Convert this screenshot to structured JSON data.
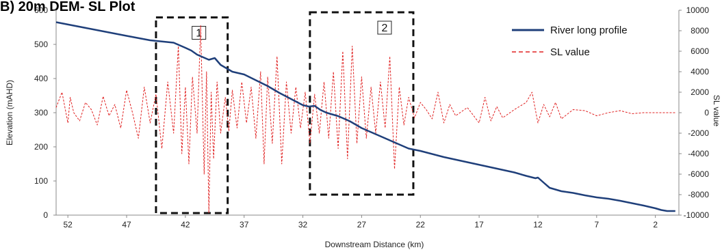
{
  "colors": {
    "profile": "#1f3f7a",
    "sl": "#e02020",
    "box": "#111111"
  },
  "chart_data": {
    "type": "line",
    "title": "B) 20m DEM- SL Plot",
    "xlabel": "Downstream Distance (km)",
    "ylabel": "Elevation (mAHD)",
    "y2label": "SL value",
    "xlim": [
      53,
      0
    ],
    "x_reversed": true,
    "ylim": [
      0,
      600
    ],
    "y2lim": [
      -10000,
      10000
    ],
    "x_ticks": [
      52,
      47,
      42,
      37,
      32,
      27,
      22,
      17,
      12,
      7,
      2
    ],
    "y_ticks": [
      0,
      100,
      200,
      300,
      400,
      500,
      600
    ],
    "y2_ticks": [
      -10000,
      -8000,
      -6000,
      -4000,
      -2000,
      0,
      2000,
      4000,
      6000,
      8000,
      10000
    ],
    "legend": {
      "position": "top-right",
      "entries": [
        "River long profile",
        "SL value"
      ]
    },
    "grid": false,
    "series": [
      {
        "name": "River long profile",
        "axis": "left",
        "style": "solid",
        "x": [
          53,
          50,
          47,
          45,
          43,
          42,
          41.5,
          41,
          40,
          39.5,
          39,
          38,
          37,
          36,
          35,
          34,
          33,
          32,
          31.5,
          31,
          30.5,
          30,
          29,
          28,
          27,
          26,
          25,
          24,
          23,
          22,
          20,
          18,
          16,
          14,
          13,
          12.2,
          12,
          11.5,
          11,
          10,
          9,
          8,
          7,
          6,
          5,
          4,
          3,
          2,
          1.5,
          1,
          0.3
        ],
        "y": [
          565,
          545,
          525,
          512,
          505,
          490,
          482,
          470,
          455,
          460,
          440,
          420,
          412,
          395,
          378,
          358,
          340,
          322,
          318,
          320,
          308,
          300,
          290,
          275,
          255,
          240,
          225,
          210,
          195,
          188,
          170,
          155,
          140,
          125,
          115,
          108,
          110,
          95,
          80,
          70,
          65,
          58,
          52,
          48,
          42,
          35,
          28,
          20,
          15,
          12,
          12
        ]
      },
      {
        "name": "SL value",
        "axis": "right",
        "style": "dashed",
        "x": [
          53,
          52.5,
          52,
          51.8,
          51.5,
          51,
          50.5,
          50,
          49.5,
          49,
          48.5,
          48,
          47.5,
          47,
          46.5,
          46,
          45.5,
          45,
          44.5,
          44,
          43.5,
          43,
          42.6,
          42.3,
          42,
          41.7,
          41.4,
          41,
          40.7,
          40.4,
          40.2,
          40,
          39.8,
          39.6,
          39.3,
          39,
          38.6,
          38.3,
          38,
          37.6,
          37.2,
          36.8,
          36.4,
          36,
          35.6,
          35.3,
          35,
          34.6,
          34.2,
          33.8,
          33.4,
          33,
          32.6,
          32.2,
          31.8,
          31.4,
          31,
          30.6,
          30.2,
          29.8,
          29.4,
          29,
          28.6,
          28.2,
          27.8,
          27.4,
          27,
          26.6,
          26.2,
          25.8,
          25.4,
          25,
          24.6,
          24.2,
          23.8,
          23.4,
          23,
          22.5,
          22,
          21.5,
          21,
          20.5,
          20,
          19.5,
          19,
          18,
          17,
          16.5,
          16,
          15.5,
          15,
          14,
          13,
          12.5,
          12,
          11.5,
          11,
          10.5,
          10,
          9,
          8,
          7,
          6,
          5,
          4,
          3,
          2,
          1,
          0.3
        ],
        "y": [
          500,
          2000,
          -1000,
          1500,
          0,
          -800,
          1000,
          300,
          -1200,
          1600,
          -300,
          800,
          -1500,
          2200,
          0,
          -2500,
          2500,
          -1000,
          1800,
          -3500,
          3000,
          -2000,
          6500,
          -4000,
          2500,
          -5000,
          3500,
          -2000,
          8500,
          -6000,
          4000,
          -9800,
          2000,
          -4500,
          3000,
          -2000,
          1500,
          -1800,
          2200,
          -1500,
          3000,
          -1000,
          2500,
          -2500,
          4000,
          -5000,
          3500,
          -3000,
          5500,
          -5000,
          3000,
          -2000,
          2500,
          -1500,
          2000,
          -3000,
          1800,
          -2000,
          3000,
          -2500,
          4000,
          -3500,
          6000,
          -4500,
          6500,
          -3000,
          3500,
          -2500,
          2500,
          -2000,
          3000,
          -1500,
          5500,
          -5500,
          2500,
          -1200,
          1500,
          -500,
          1000,
          300,
          -600,
          2000,
          -1000,
          800,
          -300,
          500,
          -1000,
          1500,
          -800,
          600,
          -500,
          300,
          1000,
          2000,
          -1000,
          800,
          -400,
          1000,
          -600,
          300,
          200,
          -300,
          0,
          200,
          -100,
          0,
          0,
          0,
          0
        ]
      }
    ],
    "annotations": [
      {
        "label": "1",
        "x_from": 44.5,
        "x_to": 38.4,
        "y2_from": -9800,
        "y2_to": 9300
      },
      {
        "label": "2",
        "x_from": 31.4,
        "x_to": 22.6,
        "y2_from": -8000,
        "y2_to": 9800
      }
    ]
  }
}
